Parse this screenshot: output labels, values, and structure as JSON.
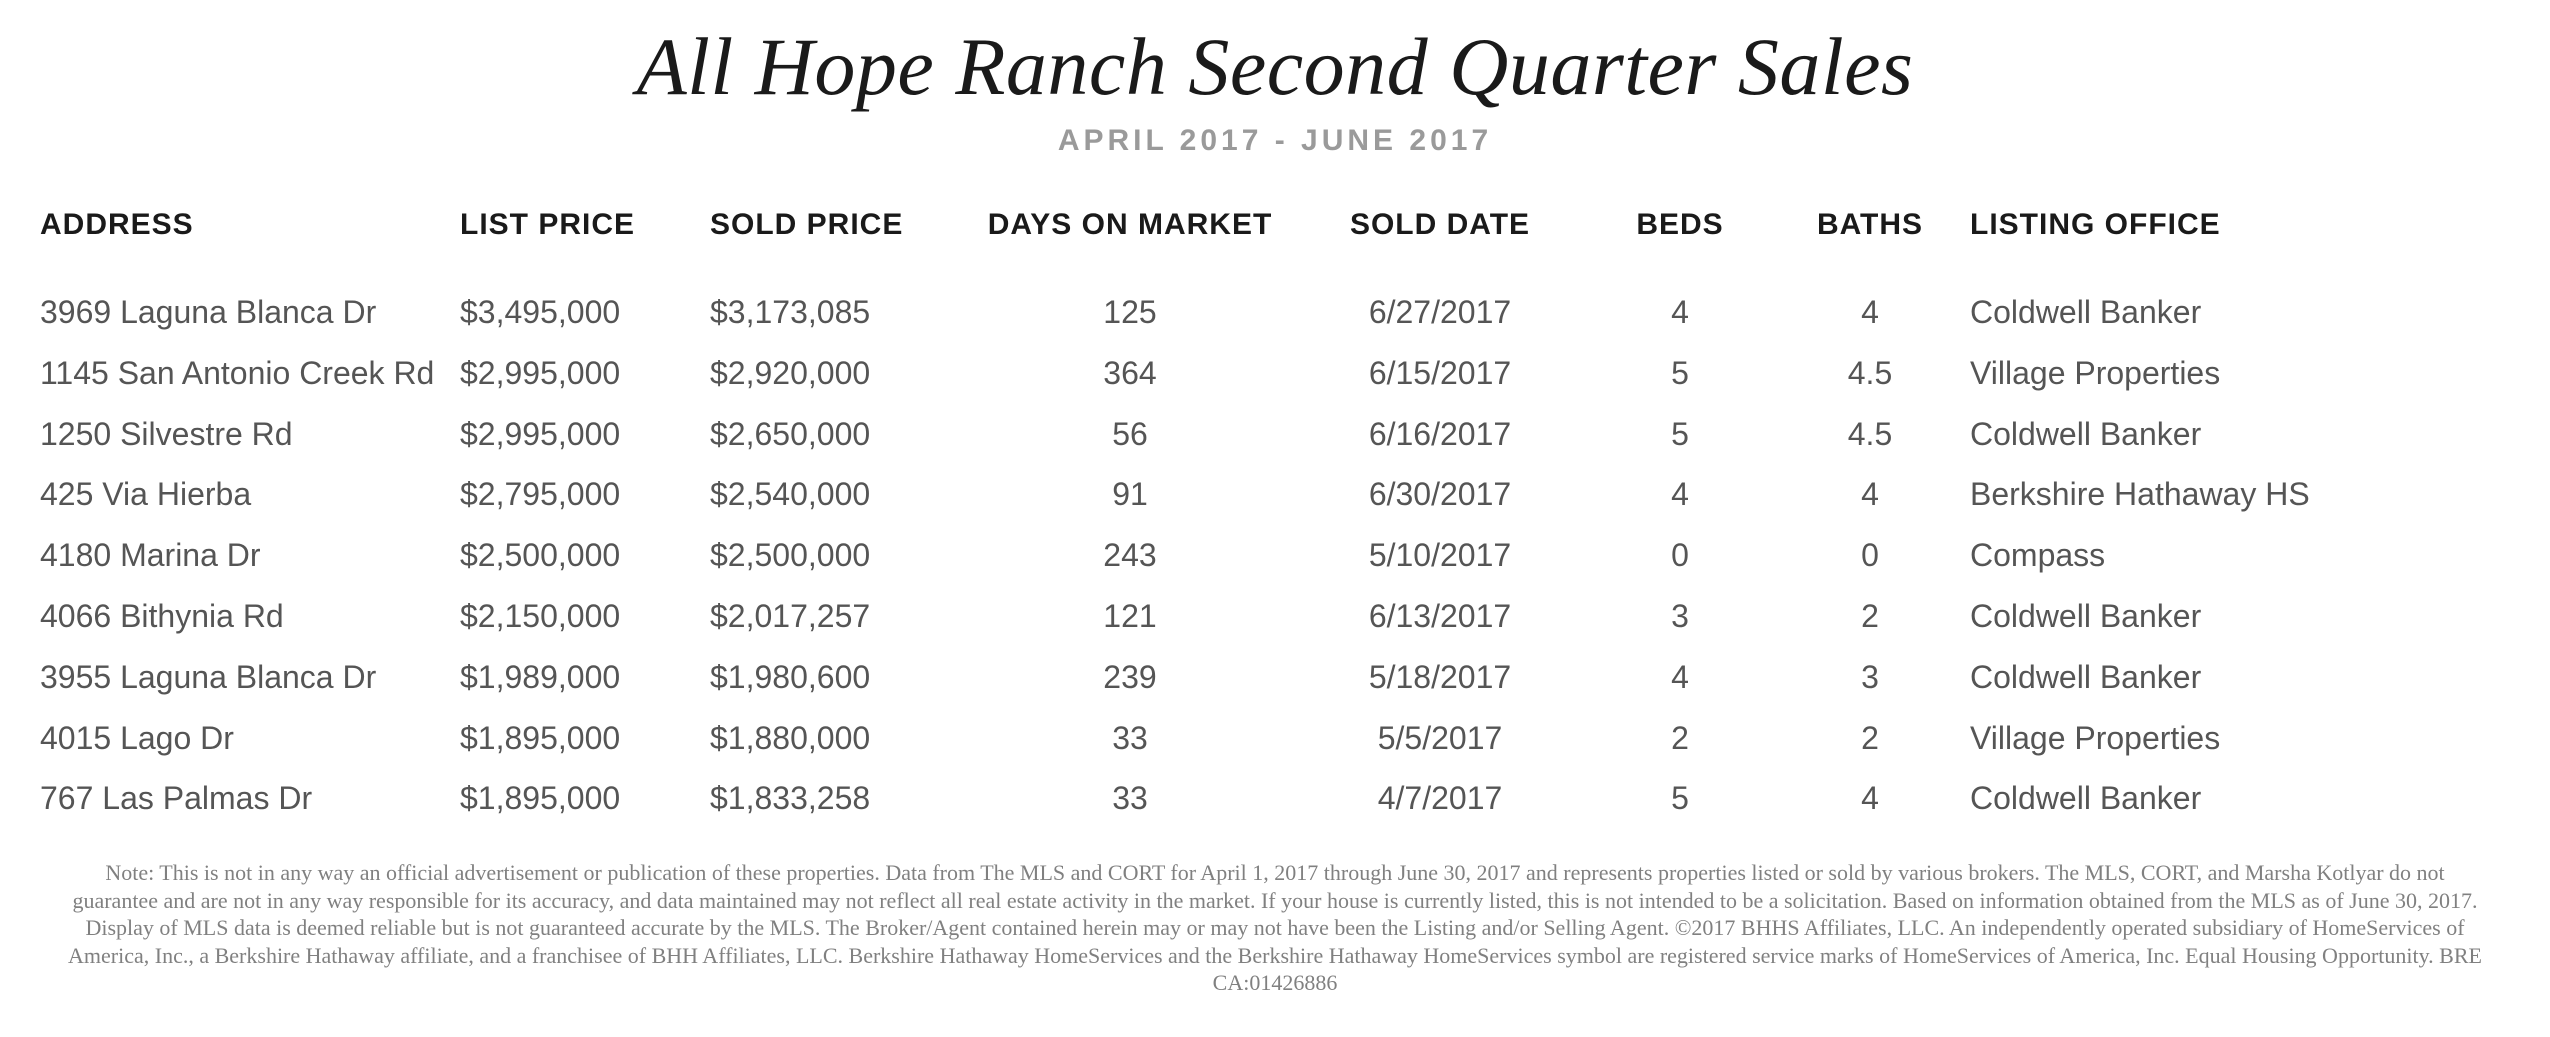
{
  "title": "All Hope Ranch Second Quarter Sales",
  "subtitle": "APRIL 2017 - JUNE 2017",
  "columns": {
    "address": "ADDRESS",
    "list_price": "LIST PRICE",
    "sold_price": "SOLD PRICE",
    "days_on_market": "DAYS ON MARKET",
    "sold_date": "SOLD DATE",
    "beds": "BEDS",
    "baths": "BATHS",
    "listing_office": "LISTING OFFICE"
  },
  "rows": [
    {
      "address": "3969 Laguna Blanca Dr",
      "list_price": "$3,495,000",
      "sold_price": "$3,173,085",
      "dom": "125",
      "sold_date": "6/27/2017",
      "beds": "4",
      "baths": "4",
      "office": "Coldwell Banker"
    },
    {
      "address": "1145 San Antonio Creek Rd",
      "list_price": "$2,995,000",
      "sold_price": "$2,920,000",
      "dom": "364",
      "sold_date": "6/15/2017",
      "beds": "5",
      "baths": "4.5",
      "office": "Village Properties"
    },
    {
      "address": "1250 Silvestre Rd",
      "list_price": "$2,995,000",
      "sold_price": "$2,650,000",
      "dom": "56",
      "sold_date": "6/16/2017",
      "beds": "5",
      "baths": "4.5",
      "office": "Coldwell Banker"
    },
    {
      "address": "425 Via Hierba",
      "list_price": "$2,795,000",
      "sold_price": "$2,540,000",
      "dom": "91",
      "sold_date": "6/30/2017",
      "beds": "4",
      "baths": "4",
      "office": "Berkshire Hathaway HS"
    },
    {
      "address": "4180 Marina Dr",
      "list_price": "$2,500,000",
      "sold_price": "$2,500,000",
      "dom": "243",
      "sold_date": "5/10/2017",
      "beds": "0",
      "baths": "0",
      "office": "Compass"
    },
    {
      "address": "4066 Bithynia Rd",
      "list_price": "$2,150,000",
      "sold_price": "$2,017,257",
      "dom": "121",
      "sold_date": "6/13/2017",
      "beds": "3",
      "baths": "2",
      "office": "Coldwell Banker"
    },
    {
      "address": "3955 Laguna Blanca Dr",
      "list_price": "$1,989,000",
      "sold_price": "$1,980,600",
      "dom": "239",
      "sold_date": "5/18/2017",
      "beds": "4",
      "baths": "3",
      "office": "Coldwell Banker"
    },
    {
      "address": "4015 Lago Dr",
      "list_price": "$1,895,000",
      "sold_price": "$1,880,000",
      "dom": "33",
      "sold_date": "5/5/2017",
      "beds": "2",
      "baths": "2",
      "office": "Village Properties"
    },
    {
      "address": "767 Las Palmas Dr",
      "list_price": "$1,895,000",
      "sold_price": "$1,833,258",
      "dom": "33",
      "sold_date": "4/7/2017",
      "beds": "5",
      "baths": "4",
      "office": "Coldwell Banker"
    }
  ],
  "footnote": "Note: This is not in any way an official advertisement or publication of these properties. Data from The MLS and CORT for April 1, 2017 through June 30, 2017 and represents properties listed or sold by various brokers. The MLS, CORT, and Marsha Kotlyar do not guarantee and are not in any way responsible for its accuracy, and data maintained may not reflect all real estate activity in the market. If your house is currently listed, this is not intended to be a solicitation. Based on information obtained from the MLS as of June 30, 2017. Display of MLS data is deemed reliable but is not guaranteed accurate by the MLS. The Broker/Agent contained herein may or may not have been the Listing and/or Selling Agent. ©2017 BHHS Affiliates, LLC. An independently operated subsidiary of HomeServices of America, Inc., a Berkshire Hathaway affiliate, and a franchisee of BHH Affiliates, LLC. Berkshire Hathaway HomeServices and the Berkshire Hathaway HomeServices symbol are registered service marks of HomeServices of America, Inc. Equal Housing Opportunity. BRE CA:01426886"
}
